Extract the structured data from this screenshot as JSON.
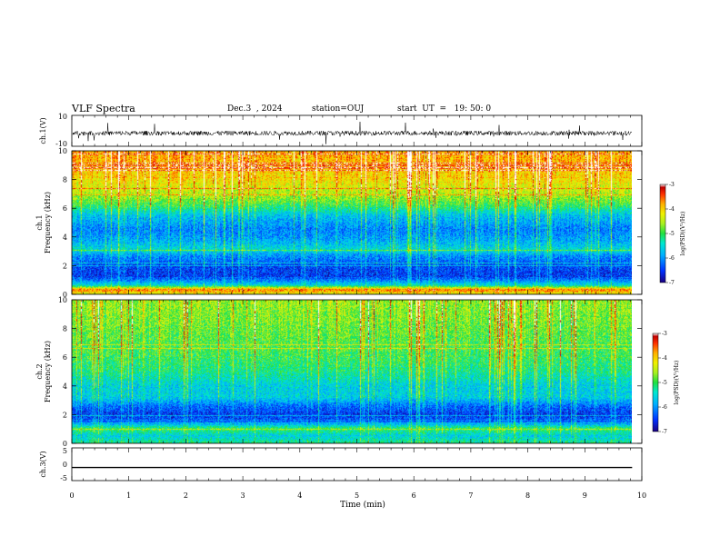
{
  "header": {
    "title": "VLF Spectra",
    "date": "Dec.3  , 2024",
    "station": "station=OUJ",
    "start": "start  UT  =   19: 50: 0"
  },
  "colors": {
    "colormap": [
      "#1a007f",
      "#0030ff",
      "#00b0ff",
      "#00e8d0",
      "#20e040",
      "#a8f020",
      "#f0f000",
      "#ffb000",
      "#ff3000",
      "#c00000",
      "#ffffff"
    ]
  },
  "chart_data": [
    {
      "type": "line",
      "name": "ch1-waveform",
      "ylabel": "ch.1(V)",
      "xlim": [
        0,
        9.83
      ],
      "ylim": [
        -10,
        10
      ],
      "yticks": [
        "10",
        "-10"
      ],
      "baseline": -1.5,
      "noise_amplitude": 3
    },
    {
      "type": "heatmap",
      "name": "ch1-spectrogram",
      "ylabel": "ch.1\nFrequency (kHz)",
      "xlim": [
        0,
        9.83
      ],
      "ylim": [
        0,
        10
      ],
      "yticks": [
        "0",
        "2",
        "4",
        "6",
        "8",
        "10"
      ],
      "zlim": [
        -7,
        -3
      ],
      "zlabel": "log(PSD)(V²/Hz)",
      "colorbar_ticks": [
        "-3",
        "-4",
        "-5",
        "-6",
        "-7"
      ],
      "profile": [
        {
          "f": 0.0,
          "z": -4.3
        },
        {
          "f": 0.3,
          "z": -3.6
        },
        {
          "f": 0.6,
          "z": -5.5
        },
        {
          "f": 1.2,
          "z": -6.5
        },
        {
          "f": 2.0,
          "z": -6.4
        },
        {
          "f": 2.7,
          "z": -6.0
        },
        {
          "f": 3.1,
          "z": -5.5
        },
        {
          "f": 3.8,
          "z": -5.9
        },
        {
          "f": 4.5,
          "z": -6.1
        },
        {
          "f": 5.5,
          "z": -5.7
        },
        {
          "f": 6.2,
          "z": -5.0
        },
        {
          "f": 7.0,
          "z": -4.5
        },
        {
          "f": 8.0,
          "z": -4.1
        },
        {
          "f": 9.0,
          "z": -3.9
        },
        {
          "f": 10.0,
          "z": -3.8
        }
      ]
    },
    {
      "type": "heatmap",
      "name": "ch2-spectrogram",
      "ylabel": "ch.2\nFrequency (kHz)",
      "xlim": [
        0,
        9.83
      ],
      "ylim": [
        0,
        10
      ],
      "yticks": [
        "0",
        "2",
        "4",
        "6",
        "8",
        "10"
      ],
      "zlim": [
        -7,
        -3
      ],
      "zlabel": "log(PSD)(V²/Hz)",
      "colorbar_ticks": [
        "-3",
        "-4",
        "-5",
        "-6",
        "-7"
      ],
      "profile": [
        {
          "f": 0.0,
          "z": -5.2
        },
        {
          "f": 0.5,
          "z": -5.6
        },
        {
          "f": 1.0,
          "z": -5.0
        },
        {
          "f": 1.5,
          "z": -6.3
        },
        {
          "f": 2.0,
          "z": -6.5
        },
        {
          "f": 2.6,
          "z": -6.2
        },
        {
          "f": 3.2,
          "z": -5.6
        },
        {
          "f": 4.0,
          "z": -5.6
        },
        {
          "f": 5.0,
          "z": -5.2
        },
        {
          "f": 6.0,
          "z": -5.0
        },
        {
          "f": 7.0,
          "z": -4.9
        },
        {
          "f": 8.0,
          "z": -4.8
        },
        {
          "f": 9.0,
          "z": -4.7
        },
        {
          "f": 10.0,
          "z": -4.6
        }
      ]
    },
    {
      "type": "line",
      "name": "ch3-waveform",
      "ylabel": "ch.3(V)",
      "xlim": [
        0,
        9.83
      ],
      "ylim": [
        -5,
        5
      ],
      "yticks": [
        "5",
        "0",
        "-5"
      ],
      "baseline": -1.0,
      "noise_amplitude": 0
    }
  ],
  "xaxis": {
    "label": "Time (min)",
    "lim": [
      0,
      10
    ],
    "ticks": [
      "0",
      "1",
      "2",
      "3",
      "4",
      "5",
      "6",
      "7",
      "8",
      "9",
      "10"
    ]
  }
}
